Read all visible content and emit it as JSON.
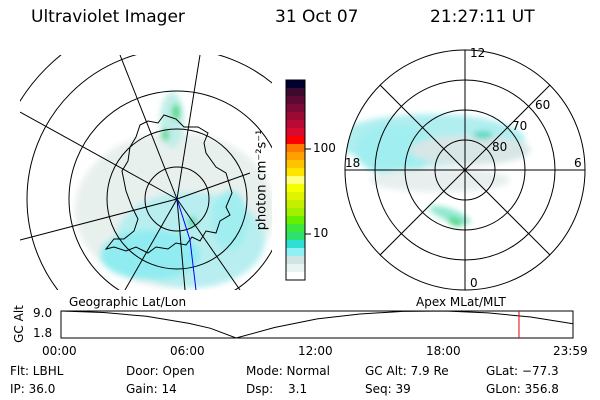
{
  "header": {
    "instrument": "Ultraviolet Imager",
    "date": "31 Oct 07",
    "time": "21:27:11 UT"
  },
  "colorbar": {
    "unit_label": "photon cm⁻²s⁻¹",
    "ticks": [
      "100",
      "10"
    ],
    "colors": [
      "#000030",
      "#3c0a2c",
      "#5c0a34",
      "#7c0a34",
      "#9a0a34",
      "#b80a34",
      "#d80a30",
      "#ff0000",
      "#ff7800",
      "#ffa000",
      "#ffc400",
      "#ffe400",
      "#ffff80",
      "#f4ff00",
      "#e0f400",
      "#c4f000",
      "#a0f000",
      "#64f000",
      "#3ce83c",
      "#2ee070",
      "#2ee0d4",
      "#90f0f4",
      "#d0e4e4",
      "#e8f4f0",
      "#ffffff"
    ]
  },
  "left_panel": {
    "label": "Geographic Lat/Lon"
  },
  "right_panel": {
    "label": "Apex MLat/MLT",
    "mlt_labels": [
      "12",
      "6",
      "0",
      "18"
    ],
    "mlat_labels": [
      "80",
      "70",
      "60"
    ]
  },
  "altitude_plot": {
    "ylabel": "GC Alt",
    "yticks": [
      "9.0",
      "1.8"
    ],
    "xticks": [
      "00:00",
      "06:00",
      "12:00",
      "18:00",
      "23:59"
    ],
    "current_time_marker_color": "#e00000"
  },
  "chart_data": {
    "type": "line",
    "ylabel": "GC Alt",
    "ylim": [
      1.8,
      9.0
    ],
    "xlim": [
      0,
      23.98
    ],
    "x_hours": [
      0,
      2,
      4,
      6,
      7,
      8.2,
      10,
      12,
      14,
      16,
      18,
      20,
      22,
      23.98
    ],
    "y": [
      9.0,
      8.6,
      7.6,
      5.7,
      4.4,
      1.8,
      4.6,
      6.9,
      8.2,
      8.9,
      9.0,
      8.5,
      7.4,
      5.6
    ],
    "marker_hour": 21.45
  },
  "status": {
    "flt": "Flt: LBHL",
    "ip": "IP: 36.0",
    "door": "Door: Open",
    "gain": "Gain: 14",
    "mode": "Mode: Normal",
    "dsp_label": "Dsp:",
    "dsp_value": "3.1",
    "gc_alt": "GC Alt: 7.9 Re",
    "seq": "Seq: 39",
    "glat": "GLat: −77.3",
    "glon": "GLon: 356.8"
  }
}
